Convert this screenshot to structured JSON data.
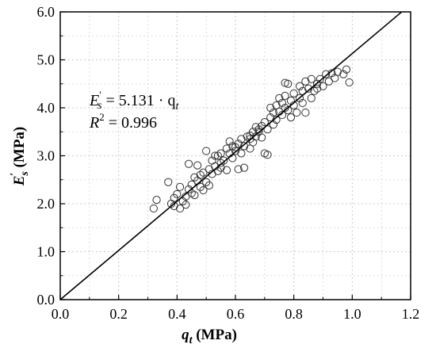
{
  "chart_data": {
    "type": "scatter",
    "x_label": {
      "main": "q",
      "sub": "t",
      "unit": " (MPa)"
    },
    "y_label": {
      "main": "E",
      "sup": "′",
      "sub": "s",
      "unit": " (MPa)"
    },
    "xlim": [
      0.0,
      1.2
    ],
    "ylim": [
      0.0,
      6.0
    ],
    "x_ticks": [
      "0.0",
      "0.2",
      "0.4",
      "0.6",
      "0.8",
      "1.0",
      "1.2"
    ],
    "y_ticks": [
      "0.0",
      "1.0",
      "2.0",
      "3.0",
      "4.0",
      "5.0",
      "6.0"
    ],
    "grid": true,
    "annotation": {
      "line1": {
        "lhs": "E",
        "sup": "′",
        "sub": "s",
        "eq": " = 5.131 · q",
        "var_sub": "t"
      },
      "line2": {
        "lhs": "R",
        "sup": "2",
        "eq": " = 0.996"
      }
    },
    "fit_line": {
      "slope": 5.131,
      "intercept": 0,
      "x_range": [
        0.0,
        1.17
      ]
    },
    "points": [
      [
        0.32,
        1.9
      ],
      [
        0.33,
        2.08
      ],
      [
        0.37,
        2.45
      ],
      [
        0.38,
        2.0
      ],
      [
        0.39,
        2.12
      ],
      [
        0.39,
        1.95
      ],
      [
        0.4,
        2.2
      ],
      [
        0.41,
        2.35
      ],
      [
        0.41,
        1.9
      ],
      [
        0.42,
        2.05
      ],
      [
        0.43,
        2.15
      ],
      [
        0.43,
        1.98
      ],
      [
        0.44,
        2.3
      ],
      [
        0.44,
        2.83
      ],
      [
        0.45,
        2.4
      ],
      [
        0.45,
        2.22
      ],
      [
        0.46,
        2.55
      ],
      [
        0.46,
        2.18
      ],
      [
        0.47,
        2.48
      ],
      [
        0.47,
        2.8
      ],
      [
        0.48,
        2.6
      ],
      [
        0.49,
        2.28
      ],
      [
        0.49,
        2.65
      ],
      [
        0.5,
        2.45
      ],
      [
        0.5,
        3.1
      ],
      [
        0.51,
        2.72
      ],
      [
        0.51,
        2.38
      ],
      [
        0.52,
        2.9
      ],
      [
        0.52,
        2.62
      ],
      [
        0.53,
        2.78
      ],
      [
        0.54,
        3.0
      ],
      [
        0.54,
        2.68
      ],
      [
        0.55,
        2.85
      ],
      [
        0.55,
        3.05
      ],
      [
        0.56,
        2.9
      ],
      [
        0.57,
        3.15
      ],
      [
        0.57,
        2.7
      ],
      [
        0.58,
        3.3
      ],
      [
        0.58,
        3.05
      ],
      [
        0.59,
        3.2
      ],
      [
        0.59,
        2.95
      ],
      [
        0.6,
        3.1
      ],
      [
        0.61,
        3.25
      ],
      [
        0.61,
        2.72
      ],
      [
        0.62,
        3.05
      ],
      [
        0.62,
        3.35
      ],
      [
        0.63,
        3.2
      ],
      [
        0.63,
        2.75
      ],
      [
        0.64,
        3.4
      ],
      [
        0.65,
        3.35
      ],
      [
        0.65,
        3.15
      ],
      [
        0.66,
        3.5
      ],
      [
        0.66,
        3.28
      ],
      [
        0.67,
        3.6
      ],
      [
        0.67,
        3.4
      ],
      [
        0.68,
        3.5
      ],
      [
        0.69,
        3.62
      ],
      [
        0.69,
        3.38
      ],
      [
        0.7,
        3.7
      ],
      [
        0.7,
        3.05
      ],
      [
        0.71,
        3.55
      ],
      [
        0.71,
        3.02
      ],
      [
        0.72,
        3.8
      ],
      [
        0.72,
        4.0
      ],
      [
        0.73,
        3.65
      ],
      [
        0.73,
        3.9
      ],
      [
        0.74,
        4.05
      ],
      [
        0.74,
        3.75
      ],
      [
        0.75,
        3.92
      ],
      [
        0.75,
        4.2
      ],
      [
        0.76,
        4.1
      ],
      [
        0.76,
        3.85
      ],
      [
        0.77,
        4.0
      ],
      [
        0.77,
        4.25
      ],
      [
        0.78,
        3.95
      ],
      [
        0.78,
        4.5
      ],
      [
        0.79,
        4.15
      ],
      [
        0.79,
        3.8
      ],
      [
        0.8,
        4.3
      ],
      [
        0.8,
        4.05
      ],
      [
        0.81,
        3.9
      ],
      [
        0.82,
        4.2
      ],
      [
        0.82,
        4.45
      ],
      [
        0.83,
        4.1
      ],
      [
        0.83,
        4.35
      ],
      [
        0.84,
        4.55
      ],
      [
        0.84,
        3.9
      ],
      [
        0.85,
        4.4
      ],
      [
        0.86,
        4.2
      ],
      [
        0.86,
        4.6
      ],
      [
        0.87,
        4.35
      ],
      [
        0.88,
        4.5
      ],
      [
        0.88,
        4.4
      ],
      [
        0.89,
        4.6
      ],
      [
        0.9,
        4.45
      ],
      [
        0.91,
        4.7
      ],
      [
        0.92,
        4.55
      ],
      [
        0.93,
        4.72
      ],
      [
        0.94,
        4.62
      ],
      [
        0.95,
        4.75
      ],
      [
        0.97,
        4.7
      ],
      [
        0.98,
        4.8
      ],
      [
        0.99,
        4.53
      ],
      [
        0.77,
        4.52
      ],
      [
        0.65,
        3.42
      ],
      [
        0.6,
        3.18
      ],
      [
        0.55,
        2.75
      ],
      [
        0.48,
        2.35
      ],
      [
        0.53,
        3.0
      ],
      [
        0.68,
        3.55
      ]
    ]
  }
}
